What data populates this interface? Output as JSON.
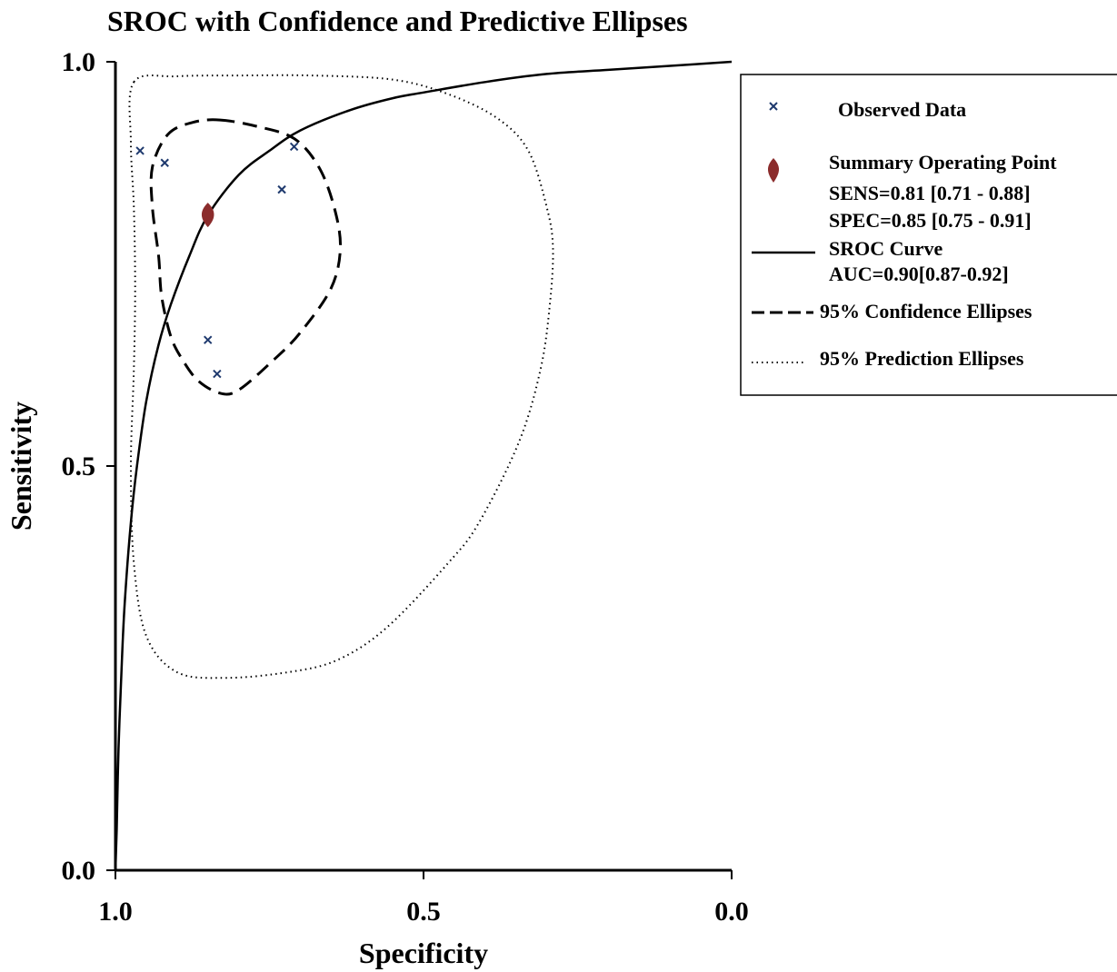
{
  "chart_data": {
    "type": "scatter",
    "title": "SROC with Confidence and Predictive Ellipses",
    "xlabel": "Specificity",
    "ylabel": "Sensitivity",
    "xlim": [
      1.0,
      0.0
    ],
    "ylim": [
      0.0,
      1.0
    ],
    "x_reversed": true,
    "x_ticks": [
      {
        "value": 1.0,
        "label": "1.0"
      },
      {
        "value": 0.5,
        "label": "0.5"
      },
      {
        "value": 0.0,
        "label": "0.0"
      }
    ],
    "y_ticks": [
      {
        "value": 0.0,
        "label": "0.0"
      },
      {
        "value": 0.5,
        "label": "0.5"
      },
      {
        "value": 1.0,
        "label": "1.0"
      }
    ],
    "grid": false,
    "legend_position": "right",
    "colors": {
      "observed": "#1f3a6e",
      "summary": "#8b2c2c",
      "lines": "#000000"
    },
    "observed_data": [
      {
        "spec": 0.96,
        "sens": 0.89
      },
      {
        "spec": 0.92,
        "sens": 0.875
      },
      {
        "spec": 0.71,
        "sens": 0.895
      },
      {
        "spec": 0.73,
        "sens": 0.842
      },
      {
        "spec": 0.85,
        "sens": 0.656
      },
      {
        "spec": 0.835,
        "sens": 0.614
      }
    ],
    "summary_point": {
      "spec": 0.85,
      "sens": 0.81
    },
    "sroc_curve": [
      [
        1.0,
        0.0
      ],
      [
        0.998,
        0.05
      ],
      [
        0.995,
        0.15
      ],
      [
        0.99,
        0.25
      ],
      [
        0.985,
        0.33
      ],
      [
        0.975,
        0.43
      ],
      [
        0.965,
        0.5
      ],
      [
        0.95,
        0.58
      ],
      [
        0.93,
        0.65
      ],
      [
        0.91,
        0.7
      ],
      [
        0.88,
        0.76
      ],
      [
        0.85,
        0.81
      ],
      [
        0.8,
        0.86
      ],
      [
        0.75,
        0.89
      ],
      [
        0.7,
        0.915
      ],
      [
        0.62,
        0.94
      ],
      [
        0.55,
        0.955
      ],
      [
        0.5,
        0.962
      ],
      [
        0.4,
        0.975
      ],
      [
        0.3,
        0.985
      ],
      [
        0.2,
        0.99
      ],
      [
        0.1,
        0.995
      ],
      [
        0.0,
        1.0
      ]
    ],
    "confidence_ellipse": [
      [
        0.83,
        0.928
      ],
      [
        0.77,
        0.92
      ],
      [
        0.71,
        0.905
      ],
      [
        0.67,
        0.87
      ],
      [
        0.645,
        0.82
      ],
      [
        0.635,
        0.77
      ],
      [
        0.65,
        0.72
      ],
      [
        0.7,
        0.665
      ],
      [
        0.745,
        0.63
      ],
      [
        0.8,
        0.594
      ],
      [
        0.83,
        0.59
      ],
      [
        0.865,
        0.605
      ],
      [
        0.89,
        0.63
      ],
      [
        0.91,
        0.66
      ],
      [
        0.925,
        0.71
      ],
      [
        0.93,
        0.76
      ],
      [
        0.94,
        0.82
      ],
      [
        0.94,
        0.87
      ],
      [
        0.915,
        0.91
      ],
      [
        0.875,
        0.925
      ],
      [
        0.83,
        0.928
      ]
    ],
    "prediction_ellipse": [
      [
        0.97,
        0.975
      ],
      [
        0.9,
        0.982
      ],
      [
        0.8,
        0.983
      ],
      [
        0.68,
        0.983
      ],
      [
        0.55,
        0.978
      ],
      [
        0.46,
        0.96
      ],
      [
        0.38,
        0.93
      ],
      [
        0.33,
        0.89
      ],
      [
        0.3,
        0.82
      ],
      [
        0.29,
        0.77
      ],
      [
        0.295,
        0.7
      ],
      [
        0.31,
        0.62
      ],
      [
        0.345,
        0.53
      ],
      [
        0.41,
        0.43
      ],
      [
        0.46,
        0.38
      ],
      [
        0.56,
        0.3
      ],
      [
        0.64,
        0.26
      ],
      [
        0.72,
        0.245
      ],
      [
        0.82,
        0.238
      ],
      [
        0.9,
        0.245
      ],
      [
        0.95,
        0.29
      ],
      [
        0.97,
        0.38
      ],
      [
        0.975,
        0.5
      ],
      [
        0.97,
        0.62
      ],
      [
        0.968,
        0.72
      ],
      [
        0.97,
        0.82
      ],
      [
        0.975,
        0.9
      ],
      [
        0.97,
        0.975
      ]
    ],
    "legend": {
      "observed": "Observed Data",
      "summary_title": "Summary Operating Point",
      "sens_text": "SENS=0.81 [0.71 - 0.88]",
      "spec_text": "SPEC=0.85 [0.75 - 0.91]",
      "sroc_title": "SROC Curve",
      "auc_text": "AUC=0.90[0.87-0.92]",
      "confidence": "95% Confidence Ellipses",
      "prediction": "95% Prediction Ellipses"
    }
  }
}
